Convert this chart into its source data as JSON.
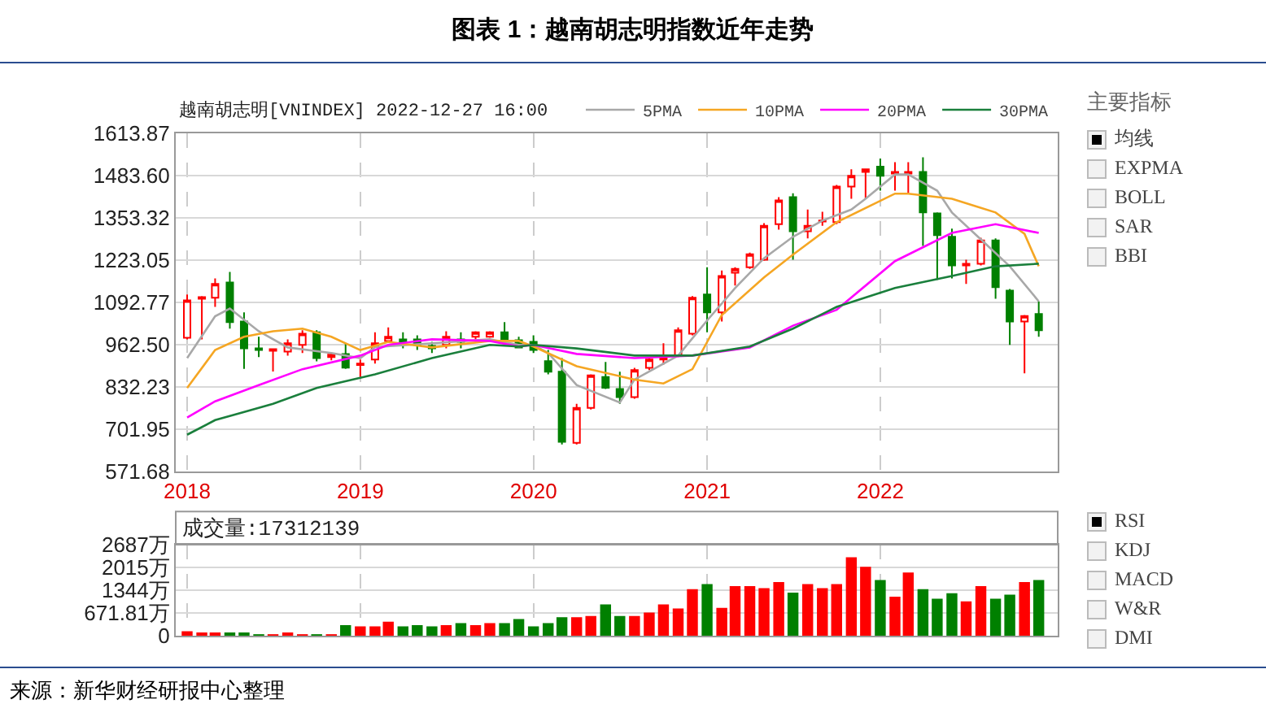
{
  "chart_data": [
    {
      "type": "candlestick",
      "title": "图表 1：越南胡志明指数近年走势",
      "subtitle": "越南胡志明[VNINDEX] 2022-12-27 16:00",
      "x": [
        "2018-01",
        "2018-02",
        "2018-03",
        "2018-04",
        "2018-05",
        "2018-06",
        "2018-07",
        "2018-08",
        "2018-09",
        "2018-10",
        "2018-11",
        "2018-12",
        "2019-01",
        "2019-02",
        "2019-03",
        "2019-04",
        "2019-05",
        "2019-06",
        "2019-07",
        "2019-08",
        "2019-09",
        "2019-10",
        "2019-11",
        "2019-12",
        "2020-01",
        "2020-02",
        "2020-03",
        "2020-04",
        "2020-05",
        "2020-06",
        "2020-07",
        "2020-08",
        "2020-09",
        "2020-10",
        "2020-11",
        "2020-12",
        "2021-01",
        "2021-02",
        "2021-03",
        "2021-04",
        "2021-05",
        "2021-06",
        "2021-07",
        "2021-08",
        "2021-09",
        "2021-10",
        "2021-11",
        "2021-12",
        "2022-01",
        "2022-02",
        "2022-03",
        "2022-04",
        "2022-05",
        "2022-06",
        "2022-07",
        "2022-08",
        "2022-09",
        "2022-10",
        "2022-11",
        "2022-12"
      ],
      "ohlc": [
        [
          984,
          1117,
          979,
          1099
        ],
        [
          1104,
          1112,
          979,
          1109
        ],
        [
          1107,
          1167,
          1079,
          1150
        ],
        [
          1154,
          1187,
          1012,
          1032
        ],
        [
          1034,
          1062,
          888,
          951
        ],
        [
          951,
          987,
          924,
          946
        ],
        [
          944,
          951,
          880,
          949
        ],
        [
          941,
          979,
          929,
          967
        ],
        [
          962,
          1007,
          937,
          996
        ],
        [
          1001,
          1007,
          911,
          921
        ],
        [
          924,
          937,
          914,
          932
        ],
        [
          934,
          967,
          888,
          892
        ],
        [
          900,
          917,
          863,
          904
        ],
        [
          917,
          1001,
          904,
          967
        ],
        [
          974,
          1016,
          971,
          987
        ],
        [
          979,
          1001,
          951,
          971
        ],
        [
          979,
          991,
          946,
          962
        ],
        [
          959,
          971,
          937,
          951
        ],
        [
          962,
          1004,
          951,
          987
        ],
        [
          979,
          1001,
          951,
          971
        ],
        [
          987,
          1004,
          979,
          1001
        ],
        [
          987,
          1004,
          984,
          1001
        ],
        [
          1001,
          1032,
          971,
          979
        ],
        [
          976,
          987,
          951,
          954
        ],
        [
          971,
          991,
          937,
          946
        ],
        [
          912,
          946,
          871,
          879
        ],
        [
          879,
          921,
          655,
          663
        ],
        [
          660,
          780,
          655,
          768
        ],
        [
          768,
          871,
          763,
          868
        ],
        [
          863,
          909,
          826,
          830
        ],
        [
          826,
          879,
          780,
          801
        ],
        [
          801,
          891,
          796,
          884
        ],
        [
          891,
          924,
          884,
          917
        ],
        [
          917,
          967,
          901,
          921
        ],
        [
          929,
          1016,
          924,
          1007
        ],
        [
          996,
          1112,
          991,
          1107
        ],
        [
          1117,
          1201,
          1001,
          1062
        ],
        [
          1062,
          1191,
          1034,
          1174
        ],
        [
          1184,
          1201,
          1145,
          1196
        ],
        [
          1201,
          1246,
          1196,
          1241
        ],
        [
          1224,
          1337,
          1221,
          1329
        ],
        [
          1334,
          1417,
          1317,
          1407
        ],
        [
          1417,
          1429,
          1224,
          1312
        ],
        [
          1312,
          1379,
          1290,
          1329
        ],
        [
          1342,
          1372,
          1329,
          1345
        ],
        [
          1340,
          1455,
          1334,
          1450
        ],
        [
          1450,
          1503,
          1412,
          1483
        ],
        [
          1495,
          1505,
          1412,
          1503
        ],
        [
          1511,
          1536,
          1437,
          1483
        ],
        [
          1490,
          1525,
          1437,
          1495
        ],
        [
          1490,
          1525,
          1430,
          1495
        ],
        [
          1495,
          1540,
          1267,
          1370
        ],
        [
          1367,
          1370,
          1162,
          1300
        ],
        [
          1295,
          1320,
          1167,
          1207
        ],
        [
          1207,
          1224,
          1150,
          1212
        ],
        [
          1212,
          1292,
          1207,
          1284
        ],
        [
          1284,
          1290,
          1104,
          1140
        ],
        [
          1129,
          1134,
          962,
          1034
        ],
        [
          1034,
          1054,
          874,
          1051
        ],
        [
          1057,
          1096,
          987,
          1007
        ]
      ],
      "colors": [
        "#ff0000",
        "#ff0000",
        "#ff0000",
        "#008000",
        "#008000",
        "#008000",
        "#ff0000",
        "#ff0000",
        "#ff0000",
        "#008000",
        "#ff0000",
        "#008000",
        "#ff0000",
        "#ff0000",
        "#ff0000",
        "#008000",
        "#008000",
        "#008000",
        "#ff0000",
        "#008000",
        "#ff0000",
        "#ff0000",
        "#008000",
        "#008000",
        "#008000",
        "#008000",
        "#008000",
        "#ff0000",
        "#ff0000",
        "#008000",
        "#008000",
        "#ff0000",
        "#ff0000",
        "#ff0000",
        "#ff0000",
        "#ff0000",
        "#008000",
        "#ff0000",
        "#ff0000",
        "#ff0000",
        "#ff0000",
        "#ff0000",
        "#008000",
        "#ff0000",
        "#ff0000",
        "#ff0000",
        "#ff0000",
        "#ff0000",
        "#008000",
        "#ff0000",
        "#ff0000",
        "#008000",
        "#008000",
        "#008000",
        "#ff0000",
        "#ff0000",
        "#008000",
        "#008000",
        "#ff0000",
        "#008000"
      ],
      "series": [
        {
          "type": "line",
          "name": "5PMA",
          "color": "#a8a8a8",
          "x": [
            "2018-01",
            "2018-03",
            "2018-04",
            "2018-06",
            "2018-08",
            "2018-11",
            "2019-01",
            "2019-02",
            "2019-06",
            "2019-10",
            "2019-12",
            "2020-01",
            "2020-02",
            "2020-04",
            "2020-07",
            "2020-08",
            "2020-11",
            "2021-01",
            "2021-03",
            "2021-05",
            "2021-07",
            "2021-09",
            "2021-11",
            "2021-12",
            "2022-02",
            "2022-03",
            "2022-05",
            "2022-06",
            "2022-08",
            "2022-10",
            "2022-12"
          ],
          "values": [
            921,
            1050,
            1074,
            1004,
            954,
            937,
            921,
            955,
            967,
            979,
            962,
            962,
            937,
            838,
            784,
            855,
            929,
            1037,
            1137,
            1229,
            1295,
            1345,
            1379,
            1412,
            1487,
            1487,
            1437,
            1370,
            1287,
            1204,
            1096
          ]
        },
        {
          "type": "line",
          "name": "10PMA",
          "color": "#f5a623",
          "x": [
            "2018-01",
            "2018-03",
            "2018-05",
            "2018-07",
            "2018-09",
            "2018-11",
            "2019-01",
            "2019-03",
            "2019-06",
            "2019-10",
            "2019-12",
            "2020-01",
            "2020-04",
            "2020-08",
            "2020-10",
            "2020-12",
            "2021-02",
            "2021-05",
            "2021-07",
            "2021-10",
            "2022-02",
            "2022-03",
            "2022-06",
            "2022-09",
            "2022-11",
            "2022-12"
          ],
          "values": [
            829,
            946,
            987,
            1004,
            1012,
            987,
            946,
            971,
            954,
            974,
            974,
            957,
            896,
            855,
            843,
            887,
            1054,
            1170,
            1240,
            1340,
            1428,
            1428,
            1412,
            1370,
            1304,
            1204
          ]
        },
        {
          "type": "line",
          "name": "20PMA",
          "color": "#ff00ff",
          "x": [
            "2018-01",
            "2018-03",
            "2018-06",
            "2018-09",
            "2019-01",
            "2019-03",
            "2019-06",
            "2019-10",
            "2019-12",
            "2020-01",
            "2020-04",
            "2020-08",
            "2020-12",
            "2021-04",
            "2021-07",
            "2021-10",
            "2022-02",
            "2022-06",
            "2022-09",
            "2022-12"
          ],
          "values": [
            738,
            788,
            838,
            887,
            929,
            962,
            979,
            974,
            957,
            962,
            934,
            921,
            929,
            954,
            1021,
            1070,
            1220,
            1307,
            1334,
            1307
          ]
        },
        {
          "type": "line",
          "name": "30PMA",
          "color": "#1a7f3c",
          "x": [
            "2018-01",
            "2018-03",
            "2018-07",
            "2018-10",
            "2019-02",
            "2019-06",
            "2019-10",
            "2019-12",
            "2020-01",
            "2020-04",
            "2020-08",
            "2020-12",
            "2021-04",
            "2021-07",
            "2021-10",
            "2022-02",
            "2022-06",
            "2022-09",
            "2022-12"
          ],
          "values": [
            685,
            730,
            780,
            829,
            871,
            921,
            962,
            957,
            962,
            951,
            929,
            929,
            957,
            1012,
            1079,
            1137,
            1174,
            1204,
            1212
          ]
        }
      ],
      "xlim": [
        "2017-12-08",
        "2023-01-10"
      ],
      "xticks": [
        "2018",
        "2019",
        "2020",
        "2021",
        "2022"
      ],
      "ylim": [
        571.68,
        1613.87
      ],
      "yticks": [
        571.68,
        701.95,
        832.23,
        {
          "value": 962.5,
          "label": "962.50"
        },
        1092.77,
        1223.05,
        1353.32,
        {
          "value": 1483.6,
          "label": "1483.60"
        },
        1613.87
      ],
      "grid": true,
      "legend": "top right",
      "annotations": [
        "主要指标",
        "均线",
        "EXPMA",
        "BOLL",
        "SAR",
        "BBI"
      ]
    },
    {
      "type": "bar",
      "x": [
        "2018-01",
        "2018-02",
        "2018-03",
        "2018-04",
        "2018-05",
        "2018-06",
        "2018-07",
        "2018-08",
        "2018-09",
        "2018-10",
        "2018-11",
        "2018-12",
        "2019-01",
        "2019-02",
        "2019-03",
        "2019-04",
        "2019-05",
        "2019-06",
        "2019-07",
        "2019-08",
        "2019-09",
        "2019-10",
        "2019-11",
        "2019-12",
        "2020-01",
        "2020-02",
        "2020-03",
        "2020-04",
        "2020-05",
        "2020-06",
        "2020-07",
        "2020-08",
        "2020-09",
        "2020-10",
        "2020-11",
        "2020-12",
        "2021-01",
        "2021-02",
        "2021-03",
        "2021-04",
        "2021-05",
        "2021-06",
        "2021-07",
        "2021-08",
        "2021-09",
        "2021-10",
        "2021-11",
        "2021-12",
        "2022-01",
        "2022-02",
        "2022-03",
        "2022-04",
        "2022-05",
        "2022-06",
        "2022-07",
        "2022-08",
        "2022-09",
        "2022-10",
        "2022-11",
        "2022-12"
      ],
      "values": [
        110,
        70,
        70,
        70,
        70,
        20,
        20,
        70,
        20,
        20,
        20,
        290,
        250,
        250,
        390,
        250,
        290,
        250,
        290,
        350,
        290,
        350,
        350,
        470,
        250,
        350,
        520,
        520,
        560,
        900,
        560,
        560,
        660,
        900,
        780,
        1350,
        1500,
        800,
        1440,
        1440,
        1380,
        1560,
        1250,
        1500,
        1380,
        1500,
        2290,
        2010,
        1620,
        1130,
        1840,
        1350,
        1070,
        1230,
        990,
        1440,
        1070,
        1190,
        1560,
        1620
      ],
      "colors": [
        "#ff0000",
        "#ff0000",
        "#ff0000",
        "#008000",
        "#008000",
        "#008000",
        "#ff0000",
        "#ff0000",
        "#ff0000",
        "#008000",
        "#ff0000",
        "#008000",
        "#ff0000",
        "#ff0000",
        "#ff0000",
        "#008000",
        "#008000",
        "#008000",
        "#ff0000",
        "#008000",
        "#ff0000",
        "#ff0000",
        "#008000",
        "#008000",
        "#008000",
        "#008000",
        "#008000",
        "#ff0000",
        "#ff0000",
        "#008000",
        "#008000",
        "#ff0000",
        "#ff0000",
        "#ff0000",
        "#ff0000",
        "#ff0000",
        "#008000",
        "#ff0000",
        "#ff0000",
        "#ff0000",
        "#ff0000",
        "#ff0000",
        "#008000",
        "#ff0000",
        "#ff0000",
        "#ff0000",
        "#ff0000",
        "#ff0000",
        "#008000",
        "#ff0000",
        "#ff0000",
        "#008000",
        "#008000",
        "#008000",
        "#ff0000",
        "#ff0000",
        "#008000",
        "#008000",
        "#ff0000",
        "#008000"
      ],
      "xlim": [
        "2017-12-08",
        "2023-01-10"
      ],
      "xticks": [
        "2018",
        "2019",
        "2020",
        "2021",
        "2022"
      ],
      "ylim": [
        0,
        2687
      ],
      "yticks": [
        0,
        {
          "value": 671.81,
          "label": "671.81万"
        },
        {
          "value": 1344,
          "label": "1344万"
        },
        {
          "value": 2015,
          "label": "2015万"
        },
        {
          "value": 2687,
          "label": "2687万"
        }
      ],
      "grid": true,
      "tick_labels": "y",
      "annotations": [
        "成交量:17312139",
        "RSI",
        "KDJ",
        "MACD",
        "W&R",
        "DMI",
        "来源：新华财经研报中心整理"
      ]
    }
  ]
}
